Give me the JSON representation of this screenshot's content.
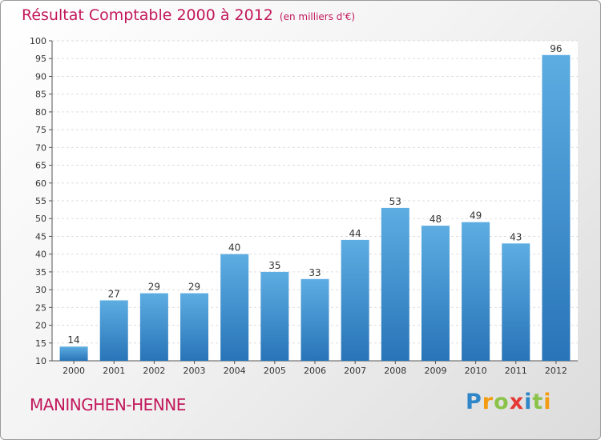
{
  "chart_data": {
    "type": "bar",
    "title": "Résultat Comptable 2000 à 2012",
    "subtitle": "(en milliers d'€)",
    "categories": [
      "2000",
      "2001",
      "2002",
      "2003",
      "2004",
      "2005",
      "2006",
      "2007",
      "2008",
      "2009",
      "2010",
      "2011",
      "2012"
    ],
    "values": [
      14,
      27,
      29,
      29,
      40,
      35,
      33,
      44,
      53,
      48,
      49,
      43,
      96
    ],
    "ylim": [
      10,
      100
    ],
    "yticks": [
      10,
      15,
      20,
      25,
      30,
      35,
      40,
      45,
      50,
      55,
      60,
      65,
      70,
      75,
      80,
      85,
      90,
      95,
      100
    ],
    "grid": true,
    "bar_color_light": "#5dade2",
    "bar_color_dark": "#2874b8"
  },
  "footer": {
    "commune": "MANINGHEN-HENNE",
    "logo_letters": [
      {
        "ch": "P",
        "color": "#2f86c8"
      },
      {
        "ch": "r",
        "color": "#f39c12"
      },
      {
        "ch": "o",
        "color": "#8bc34a"
      },
      {
        "ch": "x",
        "color": "#e53935"
      },
      {
        "ch": "i",
        "color": "#2f86c8"
      },
      {
        "ch": "t",
        "color": "#8bc34a"
      },
      {
        "ch": "i",
        "color": "#f39c12"
      }
    ]
  }
}
